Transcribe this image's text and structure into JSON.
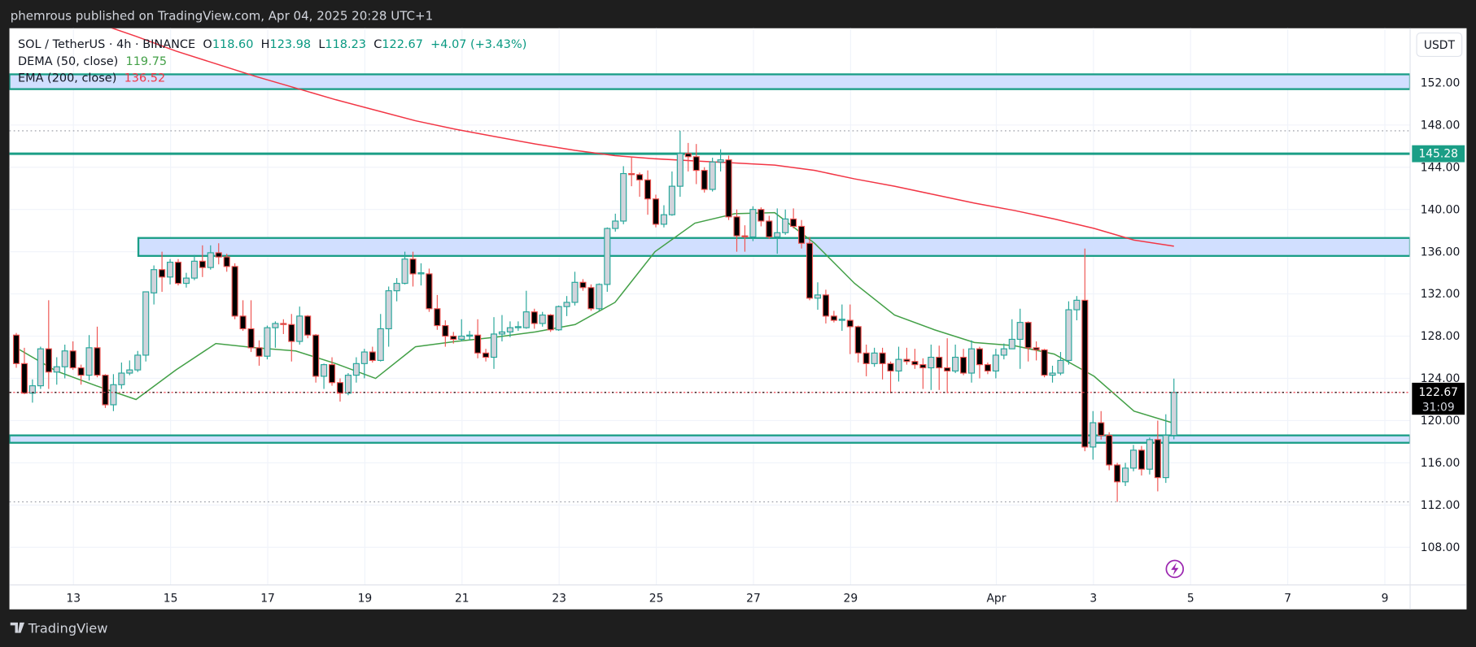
{
  "header": {
    "publish_text": "phemrous published on TradingView.com, Apr 04, 2025 20:28 UTC+1"
  },
  "legend": {
    "symbol": "SOL / TetherUS · 4h · BINANCE",
    "o_label": "O",
    "o_value": "118.60",
    "h_label": "H",
    "h_value": "123.98",
    "l_label": "L",
    "l_value": "118.23",
    "c_label": "C",
    "c_value": "122.67",
    "change": "+4.07 (+3.43%)",
    "dema_label": "DEMA (50, close)",
    "dema_value": "119.75",
    "ema_label": "EMA (200, close)",
    "ema_value": "136.52"
  },
  "price_axis": {
    "currency_button": "USDT",
    "ticks": [
      "152.00",
      "148.00",
      "144.00",
      "140.00",
      "136.00",
      "132.00",
      "128.00",
      "124.00",
      "120.00",
      "116.00",
      "112.00",
      "108.00"
    ],
    "level_label": "145.28",
    "last_price_label": "122.67",
    "countdown": "31:09"
  },
  "time_axis": {
    "labels": [
      {
        "label": "13",
        "date": "2025-03-13"
      },
      {
        "label": "15",
        "date": "2025-03-15"
      },
      {
        "label": "17",
        "date": "2025-03-17"
      },
      {
        "label": "19",
        "date": "2025-03-19"
      },
      {
        "label": "21",
        "date": "2025-03-21"
      },
      {
        "label": "23",
        "date": "2025-03-23"
      },
      {
        "label": "25",
        "date": "2025-03-25"
      },
      {
        "label": "27",
        "date": "2025-03-27"
      },
      {
        "label": "29",
        "date": "2025-03-29"
      },
      {
        "label": "Apr",
        "date": "2025-04-01"
      },
      {
        "label": "3",
        "date": "2025-04-03"
      },
      {
        "label": "5",
        "date": "2025-04-05"
      },
      {
        "label": "7",
        "date": "2025-04-07"
      },
      {
        "label": "9",
        "date": "2025-04-09"
      }
    ]
  },
  "footer": {
    "brand": "TradingView"
  },
  "colors": {
    "up": "#26a69a",
    "up_body": "#d1d4dc",
    "down": "#ef5350",
    "down_body": "#000000",
    "dema": "#43a047",
    "ema": "#f23645",
    "zone_fill": "#d1dfff",
    "zone_border": "#1a9e86",
    "header_bg": "#1e1e1e",
    "alert_icon": "#9c27b0"
  },
  "chart_data": {
    "type": "candlestick",
    "interval": "4h",
    "ylim": [
      105,
      154
    ],
    "candles_ohlc": [
      [
        128.1,
        128.3,
        125.0,
        125.4
      ],
      [
        125.4,
        126.9,
        122.5,
        122.6
      ],
      [
        122.6,
        123.9,
        121.7,
        123.3
      ],
      [
        123.3,
        127.0,
        123.0,
        126.8
      ],
      [
        126.8,
        131.4,
        123.0,
        124.6
      ],
      [
        124.6,
        126.0,
        123.4,
        125.1
      ],
      [
        125.1,
        127.2,
        124.0,
        126.6
      ],
      [
        126.6,
        127.5,
        124.8,
        125.0
      ],
      [
        125.0,
        125.3,
        123.4,
        124.3
      ],
      [
        124.3,
        128.1,
        123.8,
        126.9
      ],
      [
        126.9,
        128.9,
        124.1,
        124.3
      ],
      [
        124.3,
        124.4,
        121.2,
        121.5
      ],
      [
        121.5,
        124.4,
        120.9,
        123.4
      ],
      [
        123.4,
        125.5,
        123.0,
        124.5
      ],
      [
        124.5,
        125.7,
        124.3,
        124.8
      ],
      [
        124.8,
        126.6,
        124.6,
        126.2
      ],
      [
        126.2,
        132.2,
        125.6,
        132.2
      ],
      [
        132.1,
        134.7,
        131.0,
        134.3
      ],
      [
        134.3,
        136.0,
        132.2,
        133.6
      ],
      [
        133.6,
        135.3,
        132.9,
        135.0
      ],
      [
        135.0,
        135.3,
        132.8,
        133.0
      ],
      [
        133.0,
        134.0,
        132.6,
        133.5
      ],
      [
        133.5,
        135.7,
        133.3,
        135.1
      ],
      [
        135.1,
        136.6,
        133.6,
        134.5
      ],
      [
        134.5,
        136.6,
        134.3,
        135.9
      ],
      [
        135.9,
        136.8,
        134.8,
        135.5
      ],
      [
        135.5,
        135.8,
        134.1,
        134.6
      ],
      [
        134.6,
        134.9,
        129.6,
        129.9
      ],
      [
        129.9,
        131.4,
        128.5,
        128.7
      ],
      [
        128.7,
        131.4,
        126.5,
        126.9
      ],
      [
        126.9,
        127.6,
        125.2,
        126.1
      ],
      [
        126.1,
        129.0,
        125.8,
        128.8
      ],
      [
        128.8,
        129.4,
        126.9,
        129.2
      ],
      [
        129.2,
        129.6,
        128.2,
        129.1
      ],
      [
        129.1,
        130.1,
        125.6,
        127.5
      ],
      [
        127.5,
        130.8,
        127.2,
        129.9
      ],
      [
        129.9,
        130.0,
        127.8,
        128.1
      ],
      [
        128.1,
        128.2,
        123.6,
        124.2
      ],
      [
        124.2,
        125.4,
        123.0,
        125.3
      ],
      [
        125.3,
        126.0,
        123.3,
        123.6
      ],
      [
        123.6,
        124.0,
        121.8,
        122.6
      ],
      [
        122.6,
        124.5,
        122.4,
        124.3
      ],
      [
        124.3,
        126.0,
        123.6,
        125.4
      ],
      [
        125.4,
        126.8,
        124.0,
        126.5
      ],
      [
        126.5,
        127.0,
        125.5,
        125.7
      ],
      [
        125.7,
        130.1,
        125.6,
        128.7
      ],
      [
        128.7,
        132.7,
        127.0,
        132.3
      ],
      [
        132.3,
        133.5,
        131.3,
        133.0
      ],
      [
        133.0,
        136.0,
        132.9,
        135.3
      ],
      [
        135.3,
        136.0,
        132.7,
        133.9
      ],
      [
        133.9,
        134.9,
        132.8,
        134.0
      ],
      [
        133.9,
        134.4,
        130.3,
        130.6
      ],
      [
        130.6,
        131.9,
        128.6,
        129.0
      ],
      [
        129.0,
        129.5,
        127.0,
        128.0
      ],
      [
        128.0,
        128.4,
        127.3,
        127.7
      ],
      [
        127.7,
        129.6,
        127.5,
        128.0
      ],
      [
        128.0,
        128.5,
        127.6,
        128.1
      ],
      [
        128.1,
        129.6,
        125.9,
        126.4
      ],
      [
        126.4,
        126.8,
        125.6,
        126.0
      ],
      [
        126.0,
        129.8,
        124.9,
        128.2
      ],
      [
        128.2,
        130.0,
        127.5,
        128.4
      ],
      [
        128.4,
        129.4,
        127.9,
        128.8
      ],
      [
        128.8,
        129.4,
        128.5,
        128.9
      ],
      [
        128.8,
        132.3,
        128.7,
        130.3
      ],
      [
        130.3,
        130.6,
        128.7,
        129.2
      ],
      [
        129.2,
        130.3,
        128.9,
        130.0
      ],
      [
        130.0,
        130.1,
        128.4,
        128.6
      ],
      [
        128.6,
        130.9,
        128.5,
        130.8
      ],
      [
        130.8,
        131.8,
        129.9,
        131.2
      ],
      [
        131.2,
        134.1,
        130.9,
        133.1
      ],
      [
        133.1,
        133.4,
        132.3,
        132.6
      ],
      [
        132.6,
        132.9,
        130.4,
        130.6
      ],
      [
        130.6,
        133.0,
        130.4,
        132.9
      ],
      [
        132.9,
        138.3,
        132.2,
        138.2
      ],
      [
        138.2,
        139.6,
        137.9,
        138.9
      ],
      [
        138.9,
        144.1,
        138.6,
        143.4
      ],
      [
        143.4,
        145.0,
        142.2,
        143.3
      ],
      [
        143.3,
        143.5,
        141.2,
        142.8
      ],
      [
        142.8,
        143.7,
        139.5,
        141.0
      ],
      [
        141.0,
        141.4,
        138.3,
        138.6
      ],
      [
        138.6,
        140.4,
        138.3,
        139.5
      ],
      [
        139.5,
        143.6,
        139.4,
        142.2
      ],
      [
        142.2,
        147.45,
        141.2,
        145.3
      ],
      [
        145.3,
        146.3,
        143.6,
        145.0
      ],
      [
        145.0,
        146.2,
        142.4,
        143.7
      ],
      [
        143.7,
        144.0,
        141.6,
        141.9
      ],
      [
        141.9,
        144.9,
        141.7,
        144.5
      ],
      [
        144.5,
        145.7,
        143.6,
        144.7
      ],
      [
        144.7,
        145.1,
        139.0,
        139.3
      ],
      [
        139.3,
        140.0,
        136.0,
        137.5
      ],
      [
        137.5,
        138.5,
        136.0,
        137.4
      ],
      [
        137.4,
        140.3,
        137.0,
        140.0
      ],
      [
        140.0,
        140.2,
        138.4,
        138.9
      ],
      [
        138.9,
        139.4,
        137.2,
        137.4
      ],
      [
        137.4,
        140.1,
        135.8,
        137.8
      ],
      [
        137.8,
        140.0,
        137.6,
        139.1
      ],
      [
        139.1,
        140.1,
        138.2,
        138.4
      ],
      [
        138.4,
        139.0,
        136.3,
        136.8
      ],
      [
        136.8,
        137.4,
        131.4,
        131.6
      ],
      [
        131.6,
        133.1,
        130.5,
        131.9
      ],
      [
        131.9,
        132.4,
        129.2,
        129.9
      ],
      [
        129.9,
        130.4,
        129.3,
        129.5
      ],
      [
        129.5,
        131.0,
        128.5,
        129.6
      ],
      [
        129.5,
        131.0,
        126.3,
        128.9
      ],
      [
        128.9,
        129.0,
        125.5,
        126.4
      ],
      [
        126.4,
        127.2,
        124.2,
        125.4
      ],
      [
        125.4,
        126.9,
        125.1,
        126.4
      ],
      [
        126.4,
        126.9,
        123.9,
        125.4
      ],
      [
        125.4,
        125.6,
        122.6,
        124.7
      ],
      [
        124.7,
        127.0,
        123.7,
        125.8
      ],
      [
        125.8,
        126.9,
        125.3,
        125.6
      ],
      [
        125.6,
        126.8,
        124.9,
        125.3
      ],
      [
        125.3,
        125.9,
        123.0,
        125.0
      ],
      [
        125.0,
        127.2,
        122.9,
        126.0
      ],
      [
        126.0,
        127.1,
        122.9,
        125.0
      ],
      [
        125.0,
        127.8,
        122.6,
        124.7
      ],
      [
        124.7,
        127.2,
        124.5,
        126.0
      ],
      [
        126.0,
        126.8,
        124.3,
        124.5
      ],
      [
        124.5,
        127.6,
        123.6,
        126.8
      ],
      [
        126.8,
        127.0,
        124.0,
        125.3
      ],
      [
        125.3,
        125.5,
        124.4,
        124.7
      ],
      [
        124.7,
        126.8,
        124.0,
        126.2
      ],
      [
        126.2,
        127.3,
        125.8,
        126.8
      ],
      [
        126.8,
        129.6,
        127.5,
        127.7
      ],
      [
        127.7,
        130.6,
        124.9,
        129.3
      ],
      [
        129.3,
        129.4,
        125.6,
        126.9
      ],
      [
        126.9,
        127.5,
        125.7,
        126.7
      ],
      [
        126.7,
        126.8,
        124.1,
        124.3
      ],
      [
        124.3,
        125.2,
        123.6,
        124.5
      ],
      [
        124.5,
        126.5,
        124.3,
        125.7
      ],
      [
        125.7,
        131.3,
        125.3,
        130.5
      ],
      [
        130.5,
        131.8,
        129.5,
        131.4
      ],
      [
        131.4,
        136.3,
        117.1,
        117.5
      ],
      [
        117.5,
        120.9,
        116.3,
        119.8
      ],
      [
        119.8,
        120.9,
        118.2,
        118.6
      ],
      [
        118.6,
        118.9,
        115.3,
        115.8
      ],
      [
        115.8,
        116.0,
        112.3,
        114.2
      ],
      [
        114.2,
        116.0,
        113.8,
        115.5
      ],
      [
        115.5,
        117.7,
        115.2,
        117.2
      ],
      [
        117.2,
        117.6,
        114.8,
        115.4
      ],
      [
        115.4,
        118.4,
        114.9,
        118.2
      ],
      [
        118.2,
        120.0,
        113.3,
        114.6
      ],
      [
        114.6,
        120.6,
        114.1,
        118.6
      ],
      [
        118.6,
        123.98,
        118.23,
        122.67
      ]
    ],
    "dema_50": [
      126.9,
      124.7,
      123.3,
      122.0,
      124.8,
      127.3,
      126.9,
      126.6,
      125.4,
      124.0,
      127.0,
      127.5,
      127.9,
      128.4,
      129.1,
      131.2,
      136.0,
      138.7,
      139.6,
      139.7,
      136.8,
      133.0,
      130.0,
      128.6,
      127.4,
      127.1,
      126.3,
      124.2,
      120.9,
      119.75
    ],
    "ema_200": [
      160.2,
      158.9,
      157.7,
      156.4,
      155.0,
      153.8,
      152.6,
      151.5,
      150.4,
      149.4,
      148.4,
      147.6,
      146.9,
      146.2,
      145.6,
      145.1,
      144.8,
      144.6,
      144.4,
      144.2,
      143.7,
      142.9,
      142.2,
      141.4,
      140.6,
      139.9,
      139.1,
      138.2,
      137.1,
      136.52
    ],
    "zones": [
      {
        "top": 152.8,
        "bottom": 151.4,
        "from": "full"
      },
      {
        "top": 137.3,
        "bottom": 135.6,
        "from": "2025-03-14"
      },
      {
        "top": 118.6,
        "bottom": 117.9,
        "from": "full"
      }
    ],
    "level_line": 145.28,
    "high_marker": 147.45,
    "low_marker": 112.3,
    "last_price": 122.67
  }
}
